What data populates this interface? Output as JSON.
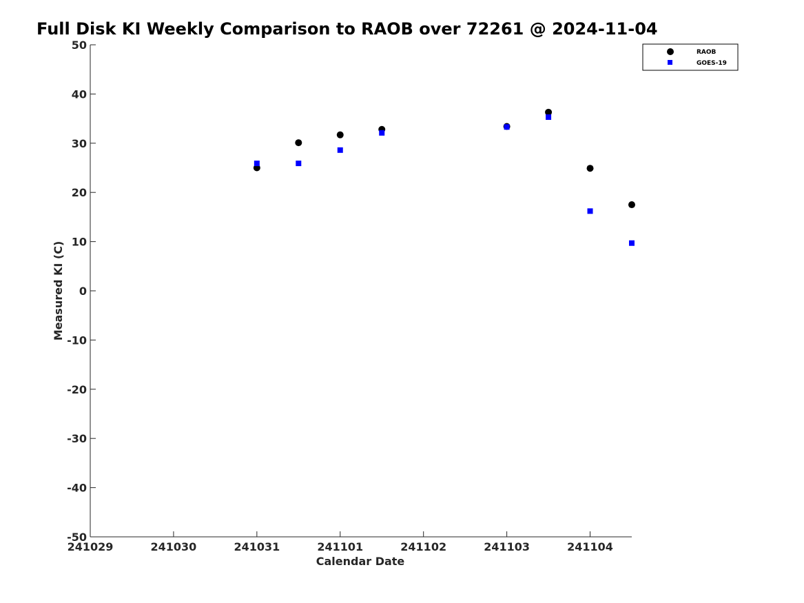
{
  "chart_data": {
    "type": "scatter",
    "title": "Full Disk KI Weekly Comparison to RAOB over 72261 @ 2024-11-04",
    "xlabel": "Calendar Date",
    "ylabel": "Measured KI (C)",
    "xlim": [
      "2024-10-29",
      "2024-11-04 12:00"
    ],
    "ylim": [
      -50,
      50
    ],
    "x_ticks": [
      "2024-10-29",
      "2024-10-30",
      "2024-10-31",
      "2024-11-01",
      "2024-11-02",
      "2024-11-03",
      "2024-11-04"
    ],
    "x_tick_labels": [
      "241029",
      "241030",
      "241031",
      "241101",
      "241102",
      "241103",
      "241104"
    ],
    "y_ticks": [
      50,
      40,
      30,
      20,
      10,
      0,
      -10,
      -20,
      -30,
      -40,
      -50
    ],
    "y_tick_labels": [
      "50",
      "40",
      "30",
      "20",
      "10",
      "0",
      "-10",
      "-20",
      "-30",
      "-40",
      "-50"
    ],
    "grid": false,
    "legend_position": "top-right",
    "series": [
      {
        "name": "RAOB",
        "marker": "circle",
        "color": "#000000",
        "points": [
          {
            "x": "2024-10-31 00:00",
            "y": 25.0
          },
          {
            "x": "2024-10-31 12:00",
            "y": 30.1
          },
          {
            "x": "2024-11-01 00:00",
            "y": 31.7
          },
          {
            "x": "2024-11-01 12:00",
            "y": 32.8
          },
          {
            "x": "2024-11-03 00:00",
            "y": 33.4
          },
          {
            "x": "2024-11-03 12:00",
            "y": 36.3
          },
          {
            "x": "2024-11-04 00:00",
            "y": 24.9
          },
          {
            "x": "2024-11-04 12:00",
            "y": 17.5
          }
        ]
      },
      {
        "name": "GOES-19",
        "marker": "square",
        "color": "#0000ff",
        "points": [
          {
            "x": "2024-10-31 00:00",
            "y": 25.9
          },
          {
            "x": "2024-10-31 12:00",
            "y": 25.9
          },
          {
            "x": "2024-11-01 00:00",
            "y": 28.6
          },
          {
            "x": "2024-11-01 12:00",
            "y": 32.1
          },
          {
            "x": "2024-11-03 00:00",
            "y": 33.3
          },
          {
            "x": "2024-11-03 12:00",
            "y": 35.3
          },
          {
            "x": "2024-11-04 00:00",
            "y": 16.2
          },
          {
            "x": "2024-11-04 12:00",
            "y": 9.7
          }
        ]
      }
    ]
  }
}
